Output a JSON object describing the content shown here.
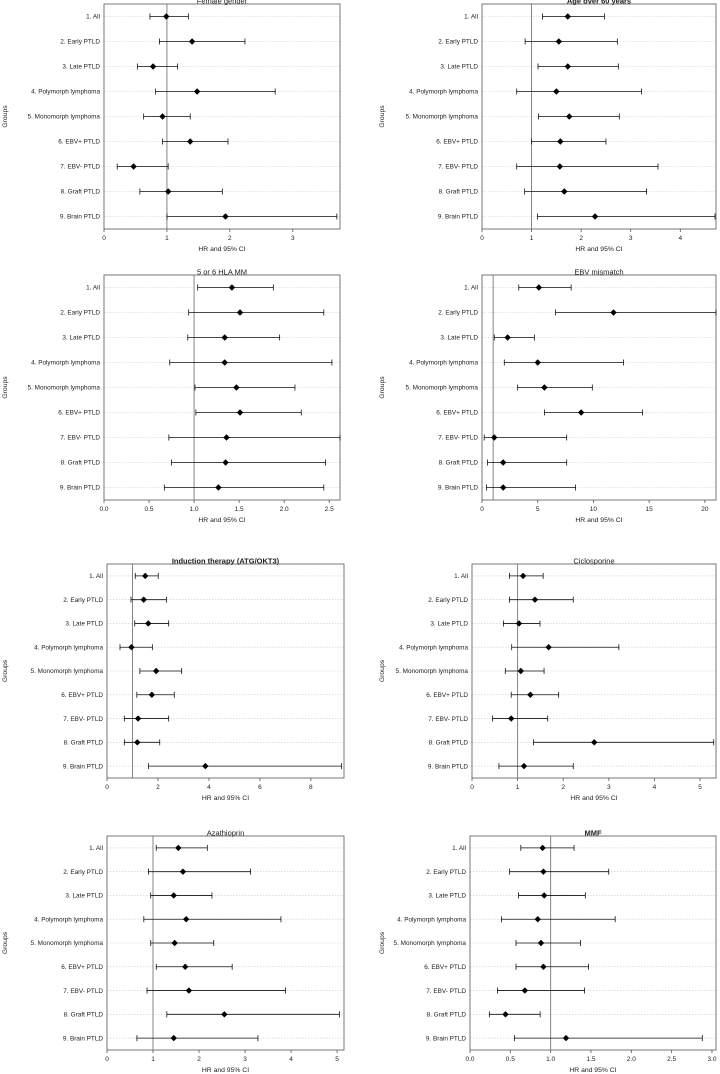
{
  "chart_data": [
    {
      "type": "forest",
      "title": "Female gender",
      "title_bold": false,
      "xlabel": "HR and 95% CI",
      "ylabel": "Groups",
      "xlim": [
        0,
        3.75
      ],
      "xticks": [
        0,
        1,
        2,
        3
      ],
      "reference_line": 1,
      "groups": [
        "1. All",
        "2. Early PTLD",
        "3. Late PTLD",
        "4. Polymorph lymphoma",
        "5. Monomorph lymphoma",
        "6. EBV+ PTLD",
        "7. EBV- PTLD",
        "8. Graft PTLD",
        "9. Brain PTLD"
      ],
      "hr": [
        0.99,
        1.4,
        0.78,
        1.48,
        0.93,
        1.37,
        0.47,
        1.02,
        1.93
      ],
      "lower": [
        0.73,
        0.88,
        0.53,
        0.82,
        0.63,
        0.93,
        0.21,
        0.57,
        1.0
      ],
      "upper": [
        1.34,
        2.24,
        1.17,
        2.72,
        1.37,
        1.97,
        1.02,
        1.88,
        3.7
      ]
    },
    {
      "type": "forest",
      "title": "Age over 60 years",
      "title_bold": true,
      "xlabel": "HR and 95% CI",
      "ylabel": "Groups",
      "xlim": [
        0,
        4.72
      ],
      "xticks": [
        0,
        1,
        2,
        3,
        4
      ],
      "reference_line": 1,
      "groups": [
        "1. All",
        "2. Early PTLD",
        "3. Late PTLD",
        "4. Polymorph lymphoma",
        "5. Monomorph lymphoma",
        "6. EBV+ PTLD",
        "7. EBV- PTLD",
        "8. Graft PTLD",
        "9. Brain PTLD"
      ],
      "hr": [
        1.73,
        1.55,
        1.73,
        1.5,
        1.76,
        1.58,
        1.57,
        1.66,
        2.28
      ],
      "lower": [
        1.22,
        0.87,
        1.13,
        0.7,
        1.14,
        1.0,
        0.7,
        0.86,
        1.12
      ],
      "upper": [
        2.47,
        2.73,
        2.75,
        3.22,
        2.77,
        2.5,
        3.55,
        3.32,
        4.7
      ]
    },
    {
      "type": "forest",
      "title": "5 or 6 HLA MM",
      "title_bold": false,
      "xlabel": "HR and 95% CI",
      "ylabel": "Groups",
      "xlim": [
        0,
        2.62
      ],
      "xticks": [
        0.0,
        0.5,
        1.0,
        1.5,
        2.0,
        2.5
      ],
      "xtick_labels": [
        "0.0",
        "0.5",
        "1.0",
        "1.5",
        "2.0",
        "2.5"
      ],
      "reference_line": 1,
      "groups": [
        "1. All",
        "2. Early PTLD",
        "3. Late PTLD",
        "4. Polymorph lymphoma",
        "5. Monomorph lymphoma",
        "6. EBV+ PTLD",
        "7. EBV- PTLD",
        "8. Graft PTLD",
        "9. Brain PTLD"
      ],
      "hr": [
        1.42,
        1.51,
        1.34,
        1.34,
        1.47,
        1.51,
        1.36,
        1.35,
        1.27
      ],
      "lower": [
        1.04,
        0.94,
        0.93,
        0.73,
        1.01,
        1.02,
        0.72,
        0.75,
        0.67
      ],
      "upper": [
        1.88,
        2.44,
        1.95,
        2.53,
        2.12,
        2.19,
        2.62,
        2.46,
        2.44
      ]
    },
    {
      "type": "forest",
      "title": "EBV mismatch",
      "title_bold": false,
      "xlabel": "HR and 95% CI",
      "ylabel": "Groups",
      "xlim": [
        0,
        21
      ],
      "xticks": [
        0,
        5,
        10,
        15,
        20
      ],
      "reference_line": 1,
      "groups": [
        "1. All",
        "2. Early PTLD",
        "3. Late PTLD",
        "4. Polymorph lymphoma",
        "5. Monomorph lymphoma",
        "6. EBV+ PTLD",
        "7. EBV- PTLD",
        "8. Graft PTLD",
        "9. Brain PTLD"
      ],
      "hr": [
        5.1,
        11.8,
        2.3,
        5.0,
        5.6,
        8.9,
        1.1,
        1.9,
        1.9
      ],
      "lower": [
        3.3,
        6.6,
        1.1,
        2.0,
        3.2,
        5.6,
        0.2,
        0.5,
        0.4
      ],
      "upper": [
        8.0,
        21.0,
        4.7,
        12.7,
        9.9,
        14.4,
        7.6,
        7.6,
        8.4
      ]
    },
    {
      "type": "forest",
      "title": "Induction therapy (ATG/OKT3)",
      "title_bold": true,
      "xlabel": "HR and 95% CI",
      "ylabel": "Groups",
      "xlim": [
        0,
        9.3
      ],
      "xticks": [
        0,
        2,
        4,
        6,
        8
      ],
      "reference_line": 1,
      "groups": [
        "1. All",
        "2. Early PTLD",
        "3. Late PTLD",
        "4. Polymorph lymphoma",
        "5. Monomorph lymphoma",
        "6. EBV+ PTLD",
        "7. EBV- PTLD",
        "8. Graft PTLD",
        "9. Brain PTLD"
      ],
      "hr": [
        1.5,
        1.44,
        1.62,
        0.96,
        1.93,
        1.76,
        1.22,
        1.19,
        3.86
      ],
      "lower": [
        1.11,
        0.94,
        1.09,
        0.51,
        1.29,
        1.17,
        0.68,
        0.68,
        1.63
      ],
      "upper": [
        2.01,
        2.33,
        2.42,
        1.78,
        2.93,
        2.64,
        2.42,
        2.07,
        9.2
      ]
    },
    {
      "type": "forest",
      "title": "Ciclosporine",
      "title_bold": false,
      "xlabel": "HR and 95% CI",
      "ylabel": "Groups",
      "xlim": [
        0,
        5.35
      ],
      "xticks": [
        0,
        1,
        2,
        3,
        4,
        5
      ],
      "reference_line": 1,
      "groups": [
        "1. All",
        "2. Early PTLD",
        "3. Late PTLD",
        "4. Polymorph lymphoma",
        "5. Monomorph lymphoma",
        "6. EBV+ PTLD",
        "7. EBV- PTLD",
        "8. Graft PTLD",
        "9. Brain PTLD"
      ],
      "hr": [
        1.12,
        1.38,
        1.03,
        1.68,
        1.07,
        1.28,
        0.86,
        2.68,
        1.14
      ],
      "lower": [
        0.82,
        0.82,
        0.69,
        0.87,
        0.73,
        0.86,
        0.45,
        1.35,
        0.59
      ],
      "upper": [
        1.56,
        2.22,
        1.49,
        3.22,
        1.58,
        1.9,
        1.66,
        5.3,
        2.22
      ]
    },
    {
      "type": "forest",
      "title": "Azathioprin",
      "title_bold": false,
      "xlabel": "HR and 95% CI",
      "ylabel": "Groups",
      "xlim": [
        0,
        5.15
      ],
      "xticks": [
        0,
        1,
        2,
        3,
        4,
        5
      ],
      "reference_line": 1,
      "groups": [
        "1. All",
        "2. Early PTLD",
        "3. Late PTLD",
        "4. Polymorph lymphoma",
        "5. Monomorph lymphoma",
        "6. EBV+ PTLD",
        "7. EBV- PTLD",
        "8. Graft PTLD",
        "9. Brain PTLD"
      ],
      "hr": [
        1.55,
        1.65,
        1.45,
        1.72,
        1.47,
        1.7,
        1.78,
        2.55,
        1.45
      ],
      "lower": [
        1.07,
        0.9,
        0.95,
        0.8,
        0.95,
        1.07,
        0.87,
        1.3,
        0.65
      ],
      "upper": [
        2.18,
        3.12,
        2.28,
        3.78,
        2.32,
        2.72,
        3.88,
        5.05,
        3.28
      ]
    },
    {
      "type": "forest",
      "title": "MMF",
      "title_bold": true,
      "xlabel": "HR and 95% CI",
      "ylabel": "Groups",
      "xlim": [
        0,
        3.05
      ],
      "xticks": [
        0.0,
        0.5,
        1.0,
        1.5,
        2.0,
        2.5,
        3.0
      ],
      "xtick_labels": [
        "0.0",
        "0.5",
        "1.0",
        "1.5",
        "2.0",
        "2.5",
        "3.0"
      ],
      "reference_line": 1,
      "groups": [
        "1. All",
        "2. Early PTLD",
        "3. Late PTLD",
        "4. Polymorph lymphoma",
        "5. Monomorph lymphoma",
        "6. EBV+ PTLD",
        "7. EBV- PTLD",
        "8. Graft PTLD",
        "9. Brain PTLD"
      ],
      "hr": [
        0.9,
        0.91,
        0.92,
        0.84,
        0.88,
        0.91,
        0.68,
        0.44,
        1.19
      ],
      "lower": [
        0.63,
        0.49,
        0.6,
        0.39,
        0.57,
        0.57,
        0.34,
        0.24,
        0.55
      ],
      "upper": [
        1.29,
        1.72,
        1.43,
        1.8,
        1.37,
        1.47,
        1.42,
        0.87,
        2.88
      ]
    }
  ],
  "colors": {
    "axis": "#555555",
    "gridline": "#c8c8c8",
    "reference_line": "#777777",
    "ci_line": "#111111",
    "marker": "#000000",
    "text": "#222222"
  }
}
